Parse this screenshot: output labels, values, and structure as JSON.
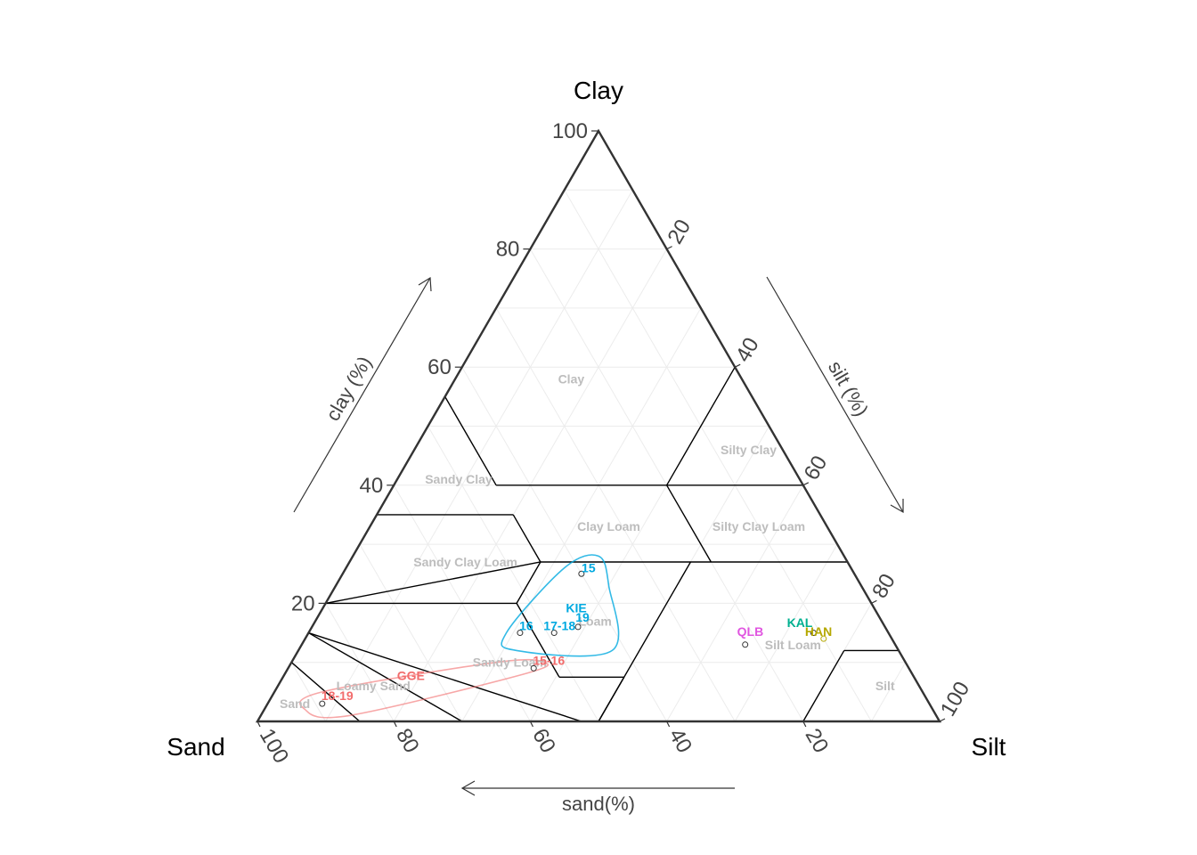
{
  "chart_data": {
    "type": "scatter",
    "subtype": "ternary-soil-texture",
    "corners": {
      "top": "Clay",
      "left": "Sand",
      "right": "Silt"
    },
    "axis_labels": {
      "clay": "clay (%)",
      "silt": "silt (%)",
      "sand": "sand(%)"
    },
    "ticks": [
      "20",
      "40",
      "60",
      "80",
      "100"
    ],
    "tick_values": [
      20,
      40,
      60,
      80,
      100
    ],
    "grid": true,
    "texture_classes": [
      {
        "name": "Clay",
        "sand": 25,
        "clay": 58
      },
      {
        "name": "Silty Clay",
        "sand": 5,
        "clay": 46
      },
      {
        "name": "Sandy Clay",
        "sand": 50,
        "clay": 41
      },
      {
        "name": "Clay Loam",
        "sand": 32,
        "clay": 33
      },
      {
        "name": "Silty Clay Loam",
        "sand": 10,
        "clay": 33
      },
      {
        "name": "Sandy Clay Loam",
        "sand": 56,
        "clay": 27
      },
      {
        "name": "Loam",
        "sand": 42,
        "clay": 17
      },
      {
        "name": "Sandy Loam",
        "sand": 58,
        "clay": 10
      },
      {
        "name": "Silt Loam",
        "sand": 15,
        "clay": 13
      },
      {
        "name": "Loamy Sand",
        "sand": 80,
        "clay": 6
      },
      {
        "name": "Silt",
        "sand": 5,
        "clay": 6
      },
      {
        "name": "Sand",
        "sand": 93,
        "clay": 3
      }
    ],
    "boundaries": [
      [
        [
          55,
          45
        ],
        [
          45,
          55
        ]
      ],
      [
        [
          45,
          40
        ],
        [
          45,
          55
        ]
      ],
      [
        [
          45,
          35
        ],
        [
          65,
          35
        ]
      ],
      [
        [
          45,
          40
        ],
        [
          20,
          40
        ]
      ],
      [
        [
          20,
          40
        ],
        [
          0,
          40
        ]
      ],
      [
        [
          20,
          40
        ],
        [
          0,
          60
        ]
      ],
      [
        [
          20,
          40
        ],
        [
          20,
          27
        ]
      ],
      [
        [
          45,
          35
        ],
        [
          45,
          27
        ]
      ],
      [
        [
          45,
          27
        ],
        [
          80,
          20
        ]
      ],
      [
        [
          52,
          20
        ],
        [
          45,
          27
        ]
      ],
      [
        [
          45,
          27
        ],
        [
          0,
          27
        ]
      ],
      [
        [
          52,
          7.5
        ],
        [
          52,
          20
        ]
      ],
      [
        [
          52,
          20
        ],
        [
          80,
          20
        ]
      ],
      [
        [
          23,
          27
        ],
        [
          50,
          0
        ]
      ],
      [
        [
          52,
          7.5
        ],
        [
          42.5,
          7.5
        ]
      ],
      [
        [
          42.5,
          7.5
        ],
        [
          50,
          0
        ]
      ],
      [
        [
          52.5,
          0
        ],
        [
          85,
          15
        ]
      ],
      [
        [
          70,
          0
        ],
        [
          85,
          15
        ]
      ],
      [
        [
          85,
          0
        ],
        [
          90,
          10
        ]
      ],
      [
        [
          20,
          0
        ],
        [
          8,
          12
        ]
      ],
      [
        [
          8,
          12
        ],
        [
          0,
          12
        ]
      ]
    ],
    "series": [
      {
        "name": "KIE",
        "color": "#00a9e0",
        "points": [
          {
            "label": "15",
            "sand": 40,
            "clay": 25
          },
          {
            "label": "16",
            "sand": 54,
            "clay": 15
          },
          {
            "label": "17-18",
            "sand": 49,
            "clay": 15
          },
          {
            "label": "19",
            "sand": 45,
            "clay": 16
          }
        ],
        "hull": [
          [
            36,
            28
          ],
          [
            37,
            23
          ],
          [
            42,
            12
          ],
          [
            56,
            12
          ],
          [
            56,
            15
          ],
          [
            42,
            26
          ]
        ]
      },
      {
        "name": "GGE",
        "color": "#f26c6c",
        "points": [
          {
            "label": "15-16",
            "sand": 55,
            "clay": 9
          },
          {
            "label": "18-19",
            "sand": 89,
            "clay": 3
          }
        ],
        "hull": [
          [
            53,
            10
          ],
          [
            57,
            8
          ],
          [
            86,
            1
          ],
          [
            92,
            2
          ],
          [
            88,
            5
          ],
          [
            60,
            10
          ]
        ]
      },
      {
        "name": "QLB",
        "color": "#e055e0",
        "points": [
          {
            "label": "",
            "sand": 22,
            "clay": 13
          }
        ]
      },
      {
        "name": "KAL",
        "color": "#00b090",
        "points": [
          {
            "label": "",
            "sand": 11,
            "clay": 15
          }
        ]
      },
      {
        "name": "HAN",
        "color": "#b5a800",
        "points": [
          {
            "label": "",
            "sand": 10,
            "clay": 14
          }
        ]
      }
    ]
  }
}
